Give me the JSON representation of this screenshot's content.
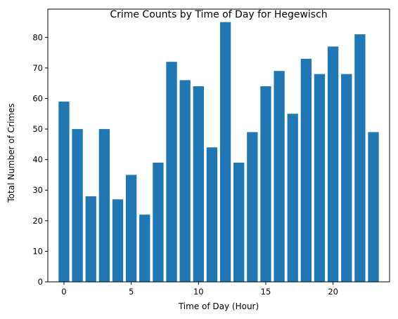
{
  "chart_data": {
    "type": "bar",
    "title": "Crime Counts by Time of Day for Hegewisch",
    "xlabel": "Time of Day (Hour)",
    "ylabel": "Total Number of Crimes",
    "x": [
      0,
      1,
      2,
      3,
      4,
      5,
      6,
      7,
      8,
      9,
      10,
      11,
      12,
      13,
      14,
      15,
      16,
      17,
      18,
      19,
      20,
      21,
      22,
      23
    ],
    "values": [
      59,
      50,
      28,
      50,
      27,
      35,
      22,
      39,
      72,
      66,
      64,
      44,
      85,
      39,
      49,
      64,
      69,
      55,
      73,
      68,
      77,
      68,
      81,
      49
    ],
    "xlim": [
      -1.2,
      24.2
    ],
    "ylim": [
      0,
      89.25
    ],
    "xticks": [
      0,
      5,
      10,
      15,
      20
    ],
    "yticks": [
      0,
      10,
      20,
      30,
      40,
      50,
      60,
      70,
      80
    ],
    "bar_width": 0.8,
    "bar_color": "#1f77b4",
    "grid": false,
    "legend": "none"
  }
}
